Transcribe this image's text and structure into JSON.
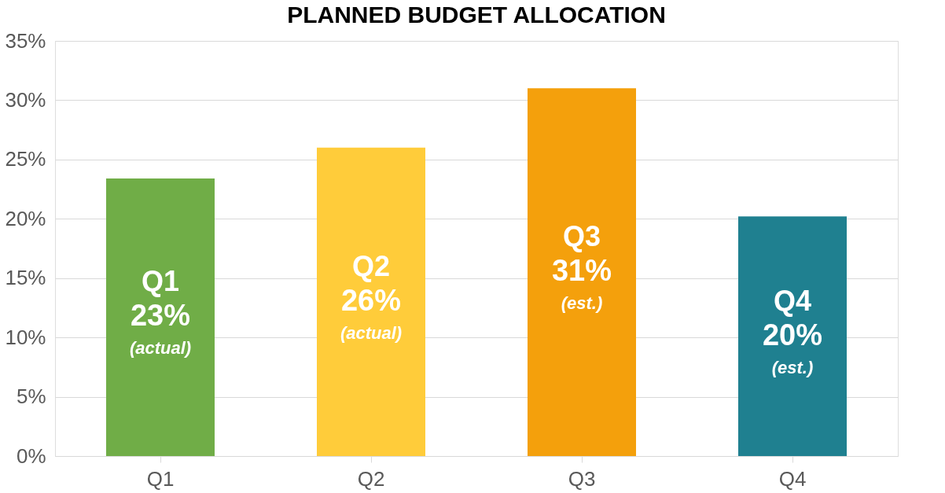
{
  "chart_data": {
    "type": "bar",
    "title": "PLANNED BUDGET ALLOCATION",
    "categories": [
      "Q1",
      "Q2",
      "Q3",
      "Q4"
    ],
    "values": [
      23.4,
      26,
      31,
      20.2
    ],
    "colors": [
      "#70ad47",
      "#ffcc3a",
      "#f4a00c",
      "#1f8090"
    ],
    "value_labels": [
      "23%",
      "26%",
      "31%",
      "20%"
    ],
    "annotations": [
      "Q1",
      "(actual)",
      "Q2",
      "(actual)",
      "Q3",
      "(est.)",
      "Q4",
      "(est.)"
    ],
    "ylim": [
      0,
      35
    ],
    "yticks": [
      {
        "value": 0,
        "label": "0%"
      },
      {
        "value": 5,
        "label": "5%"
      },
      {
        "value": 10,
        "label": "10%"
      },
      {
        "value": 15,
        "label": "15%"
      },
      {
        "value": 20,
        "label": "20%"
      },
      {
        "value": 25,
        "label": "25%"
      },
      {
        "value": 30,
        "label": "30%"
      },
      {
        "value": 35,
        "label": "35%"
      }
    ],
    "grid": "y"
  }
}
